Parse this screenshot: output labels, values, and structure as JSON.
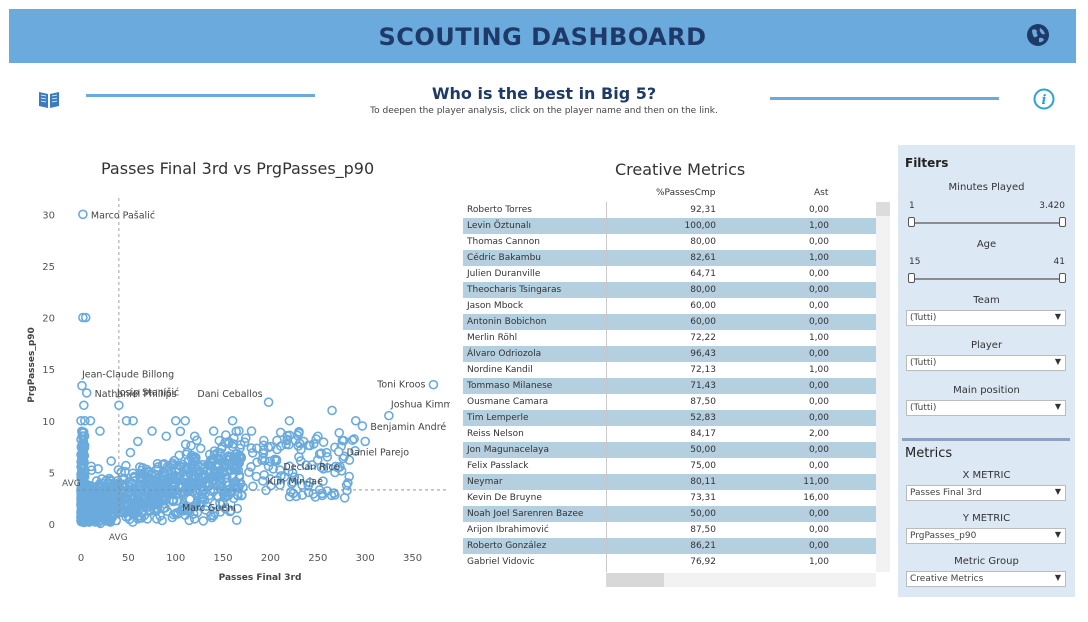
{
  "header": {
    "title": "SCOUTING DASHBOARD",
    "globe_icon": "globe-icon"
  },
  "intro": {
    "title": "Who is the best in Big 5?",
    "note": "To deepen the player analysis, click on the player name and then on the link.",
    "book_icon": "book-icon",
    "info_icon": "info-icon"
  },
  "colors": {
    "accent": "#6aaadd",
    "title_dark": "#1f3a68",
    "row_alt": "#b3cfe0",
    "panel_bg": "#dde8f5",
    "point": "#6aaadd"
  },
  "scatter": {
    "title": "Passes Final 3rd vs PrgPasses_p90"
  },
  "chart_data": {
    "type": "scatter",
    "title": "Passes Final 3rd vs PrgPasses_p90",
    "xlabel": "Passes Final 3rd",
    "ylabel": "PrgPasses_p90",
    "x_ticks": [
      0,
      50,
      100,
      150,
      200,
      250,
      300,
      350
    ],
    "y_ticks": [
      0,
      5,
      10,
      15,
      20,
      25,
      30
    ],
    "xlim": [
      0,
      380
    ],
    "ylim": [
      0,
      31
    ],
    "avg_x": 40,
    "avg_y": 3.3,
    "avg_label": "AVG",
    "labeled_points": [
      {
        "name": "Marco Pašalić",
        "x": 2,
        "y": 30
      },
      {
        "name": "Jean-Claude Billong",
        "x": 1,
        "y": 13.4
      },
      {
        "name": "Nathaniel Phillips",
        "x": 6,
        "y": 12.7
      },
      {
        "name": "Josip Stanišić",
        "x": 40,
        "y": 11.5
      },
      {
        "name": "Dani Ceballos",
        "x": 198,
        "y": 11.8
      },
      {
        "name": "Toni Kroos",
        "x": 372,
        "y": 13.5
      },
      {
        "name": "Joshua Kimmich",
        "x": 325,
        "y": 10.5
      },
      {
        "name": "Benjamin André",
        "x": 297,
        "y": 9.5
      },
      {
        "name": "Daniel Parejo",
        "x": 272,
        "y": 7.0
      },
      {
        "name": "Declan Rice",
        "x": 220,
        "y": 5.6
      },
      {
        "name": "Kim Min-jae",
        "x": 205,
        "y": 4.2
      },
      {
        "name": "Marc Guéhi",
        "x": 115,
        "y": 2.4
      }
    ],
    "other_points_visible": [
      {
        "x": 2,
        "y": 20
      },
      {
        "x": 5,
        "y": 20
      },
      {
        "x": 0,
        "y": 10
      },
      {
        "x": 4,
        "y": 10
      },
      {
        "x": 10,
        "y": 10
      },
      {
        "x": 3,
        "y": 11.5
      },
      {
        "x": 48,
        "y": 10
      },
      {
        "x": 55,
        "y": 10
      },
      {
        "x": 100,
        "y": 10
      },
      {
        "x": 110,
        "y": 10
      },
      {
        "x": 160,
        "y": 10
      },
      {
        "x": 220,
        "y": 10
      },
      {
        "x": 265,
        "y": 11
      },
      {
        "x": 290,
        "y": 10
      },
      {
        "x": 235,
        "y": 8
      },
      {
        "x": 250,
        "y": 8.5
      },
      {
        "x": 300,
        "y": 8
      },
      {
        "x": 180,
        "y": 9
      },
      {
        "x": 140,
        "y": 9
      },
      {
        "x": 120,
        "y": 8.5
      },
      {
        "x": 90,
        "y": 8.5
      },
      {
        "x": 60,
        "y": 8
      },
      {
        "x": 75,
        "y": 9
      },
      {
        "x": 20,
        "y": 9
      },
      {
        "x": 160,
        "y": 7.5
      },
      {
        "x": 200,
        "y": 7.5
      },
      {
        "x": 230,
        "y": 6.5
      },
      {
        "x": 260,
        "y": 6.5
      },
      {
        "x": 60,
        "y": 0.5
      },
      {
        "x": 70,
        "y": 0.5
      },
      {
        "x": 80,
        "y": 0.5
      },
      {
        "x": 100,
        "y": 1
      },
      {
        "x": 120,
        "y": 0.5
      },
      {
        "x": 140,
        "y": 0.8
      },
      {
        "x": 150,
        "y": 2
      },
      {
        "x": 165,
        "y": 1.5
      },
      {
        "x": 30,
        "y": 0.3
      },
      {
        "x": 15,
        "y": 0.2
      }
    ]
  },
  "creative": {
    "title": "Creative Metrics",
    "columns": [
      "%PassesCmp",
      "Ast"
    ],
    "rows": [
      {
        "player": "Roberto Torres",
        "pc": "92,31",
        "ast": "0,00"
      },
      {
        "player": "Levin Öztunalı",
        "pc": "100,00",
        "ast": "1,00"
      },
      {
        "player": "Thomas Cannon",
        "pc": "80,00",
        "ast": "0,00"
      },
      {
        "player": "Cédric Bakambu",
        "pc": "82,61",
        "ast": "1,00"
      },
      {
        "player": "Julien Duranville",
        "pc": "64,71",
        "ast": "0,00"
      },
      {
        "player": "Theocharis Tsingaras",
        "pc": "80,00",
        "ast": "0,00"
      },
      {
        "player": "Jason Mbock",
        "pc": "60,00",
        "ast": "0,00"
      },
      {
        "player": "Antonin Bobichon",
        "pc": "60,00",
        "ast": "0,00"
      },
      {
        "player": "Merlin Röhl",
        "pc": "72,22",
        "ast": "1,00"
      },
      {
        "player": "Álvaro Odriozola",
        "pc": "96,43",
        "ast": "0,00"
      },
      {
        "player": "Nordine Kandil",
        "pc": "72,13",
        "ast": "1,00"
      },
      {
        "player": "Tommaso Milanese",
        "pc": "71,43",
        "ast": "0,00"
      },
      {
        "player": "Ousmane Camara",
        "pc": "87,50",
        "ast": "0,00"
      },
      {
        "player": "Tim Lemperle",
        "pc": "52,83",
        "ast": "0,00"
      },
      {
        "player": "Reiss Nelson",
        "pc": "84,17",
        "ast": "2,00"
      },
      {
        "player": "Jon Magunacelaya",
        "pc": "50,00",
        "ast": "0,00"
      },
      {
        "player": "Felix Passlack",
        "pc": "75,00",
        "ast": "0,00"
      },
      {
        "player": "Neymar",
        "pc": "80,11",
        "ast": "11,00"
      },
      {
        "player": "Kevin De Bruyne",
        "pc": "73,31",
        "ast": "16,00"
      },
      {
        "player": "Noah Joel Sarenren Bazee",
        "pc": "50,00",
        "ast": "0,00"
      },
      {
        "player": "Arijon Ibrahimović",
        "pc": "87,50",
        "ast": "0,00"
      },
      {
        "player": "Roberto González",
        "pc": "86,21",
        "ast": "0,00"
      },
      {
        "player": "Gabriel Vidovic",
        "pc": "76,92",
        "ast": "1,00"
      }
    ]
  },
  "filters": {
    "title": "Filters",
    "minutes": {
      "label": "Minutes Played",
      "min": "1",
      "max": "3.420"
    },
    "age": {
      "label": "Age",
      "min": "15",
      "max": "41"
    },
    "team": {
      "label": "Team",
      "value": "(Tutti)"
    },
    "player": {
      "label": "Player",
      "value": "(Tutti)"
    },
    "position": {
      "label": "Main position",
      "value": "(Tutti)"
    }
  },
  "metrics": {
    "title": "Metrics",
    "x": {
      "label": "X METRIC",
      "value": "Passes Final 3rd"
    },
    "y": {
      "label": "Y METRIC",
      "value": "PrgPasses_p90"
    },
    "group": {
      "label": "Metric Group",
      "value": "Creative Metrics"
    }
  }
}
